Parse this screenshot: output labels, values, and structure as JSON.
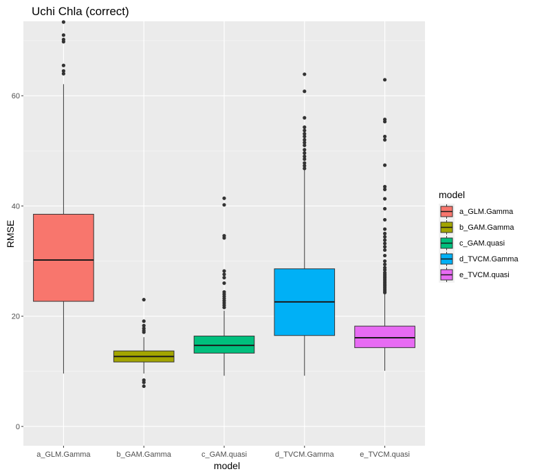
{
  "chart_data": {
    "type": "boxplot",
    "title": "Uchi Chla (correct)",
    "xlabel": "model",
    "ylabel": "RMSE",
    "ylim": [
      -3.5,
      73.5
    ],
    "yticks": [
      0,
      20,
      40,
      60
    ],
    "grid": true,
    "legend": {
      "title": "model",
      "position": "right"
    },
    "categories": [
      "a_GLM.Gamma",
      "b_GAM.Gamma",
      "c_GAM.quasi",
      "d_TVCM.Gamma",
      "e_TVCM.quasi"
    ],
    "series": [
      {
        "name": "a_GLM.Gamma",
        "color": "#F8766D",
        "min": 9.6,
        "q1": 22.7,
        "median": 30.2,
        "q3": 38.5,
        "max": 62.1,
        "outliers": [
          64.0,
          64.5,
          65.5,
          69.8,
          70.2,
          71.0,
          73.5
        ]
      },
      {
        "name": "b_GAM.Gamma",
        "color": "#A3A500",
        "min": 9.6,
        "q1": 11.7,
        "median": 12.7,
        "q3": 13.7,
        "max": 16.2,
        "outliers": [
          7.3,
          8.0,
          8.4,
          17.1,
          17.4,
          17.8,
          18.3,
          19.1,
          23.0
        ]
      },
      {
        "name": "c_GAM.quasi",
        "color": "#00BF7D",
        "min": 9.2,
        "q1": 13.3,
        "median": 14.7,
        "q3": 16.4,
        "max": 21.0,
        "outliers": [
          21.6,
          22.0,
          22.4,
          22.8,
          23.2,
          23.6,
          24.0,
          24.4,
          26.0,
          27.0,
          27.6,
          28.2,
          34.2,
          34.6,
          40.2,
          41.4
        ]
      },
      {
        "name": "d_TVCM.Gamma",
        "color": "#00B0F6",
        "min": 9.2,
        "q1": 16.5,
        "median": 22.6,
        "q3": 28.6,
        "max": 46.5,
        "outliers": [
          46.8,
          47.3,
          47.8,
          48.5,
          49.0,
          49.6,
          50.2,
          51.0,
          51.5,
          52.0,
          52.6,
          53.1,
          53.7,
          54.3,
          56.0,
          60.8,
          63.9
        ]
      },
      {
        "name": "e_TVCM.quasi",
        "color": "#E76BF3",
        "min": 10.1,
        "q1": 14.3,
        "median": 16.1,
        "q3": 18.2,
        "max": 24.0,
        "outliers": [
          24.3,
          24.6,
          24.9,
          25.2,
          25.5,
          25.8,
          26.1,
          26.4,
          26.7,
          27.0,
          27.3,
          27.6,
          27.9,
          28.4,
          28.8,
          29.4,
          30.0,
          31.0,
          32.0,
          32.6,
          33.2,
          33.8,
          34.4,
          35.0,
          35.8,
          37.5,
          39.5,
          41.3,
          43.0,
          43.5,
          47.4,
          52.0,
          52.6,
          55.3,
          55.7,
          62.9
        ]
      }
    ]
  }
}
